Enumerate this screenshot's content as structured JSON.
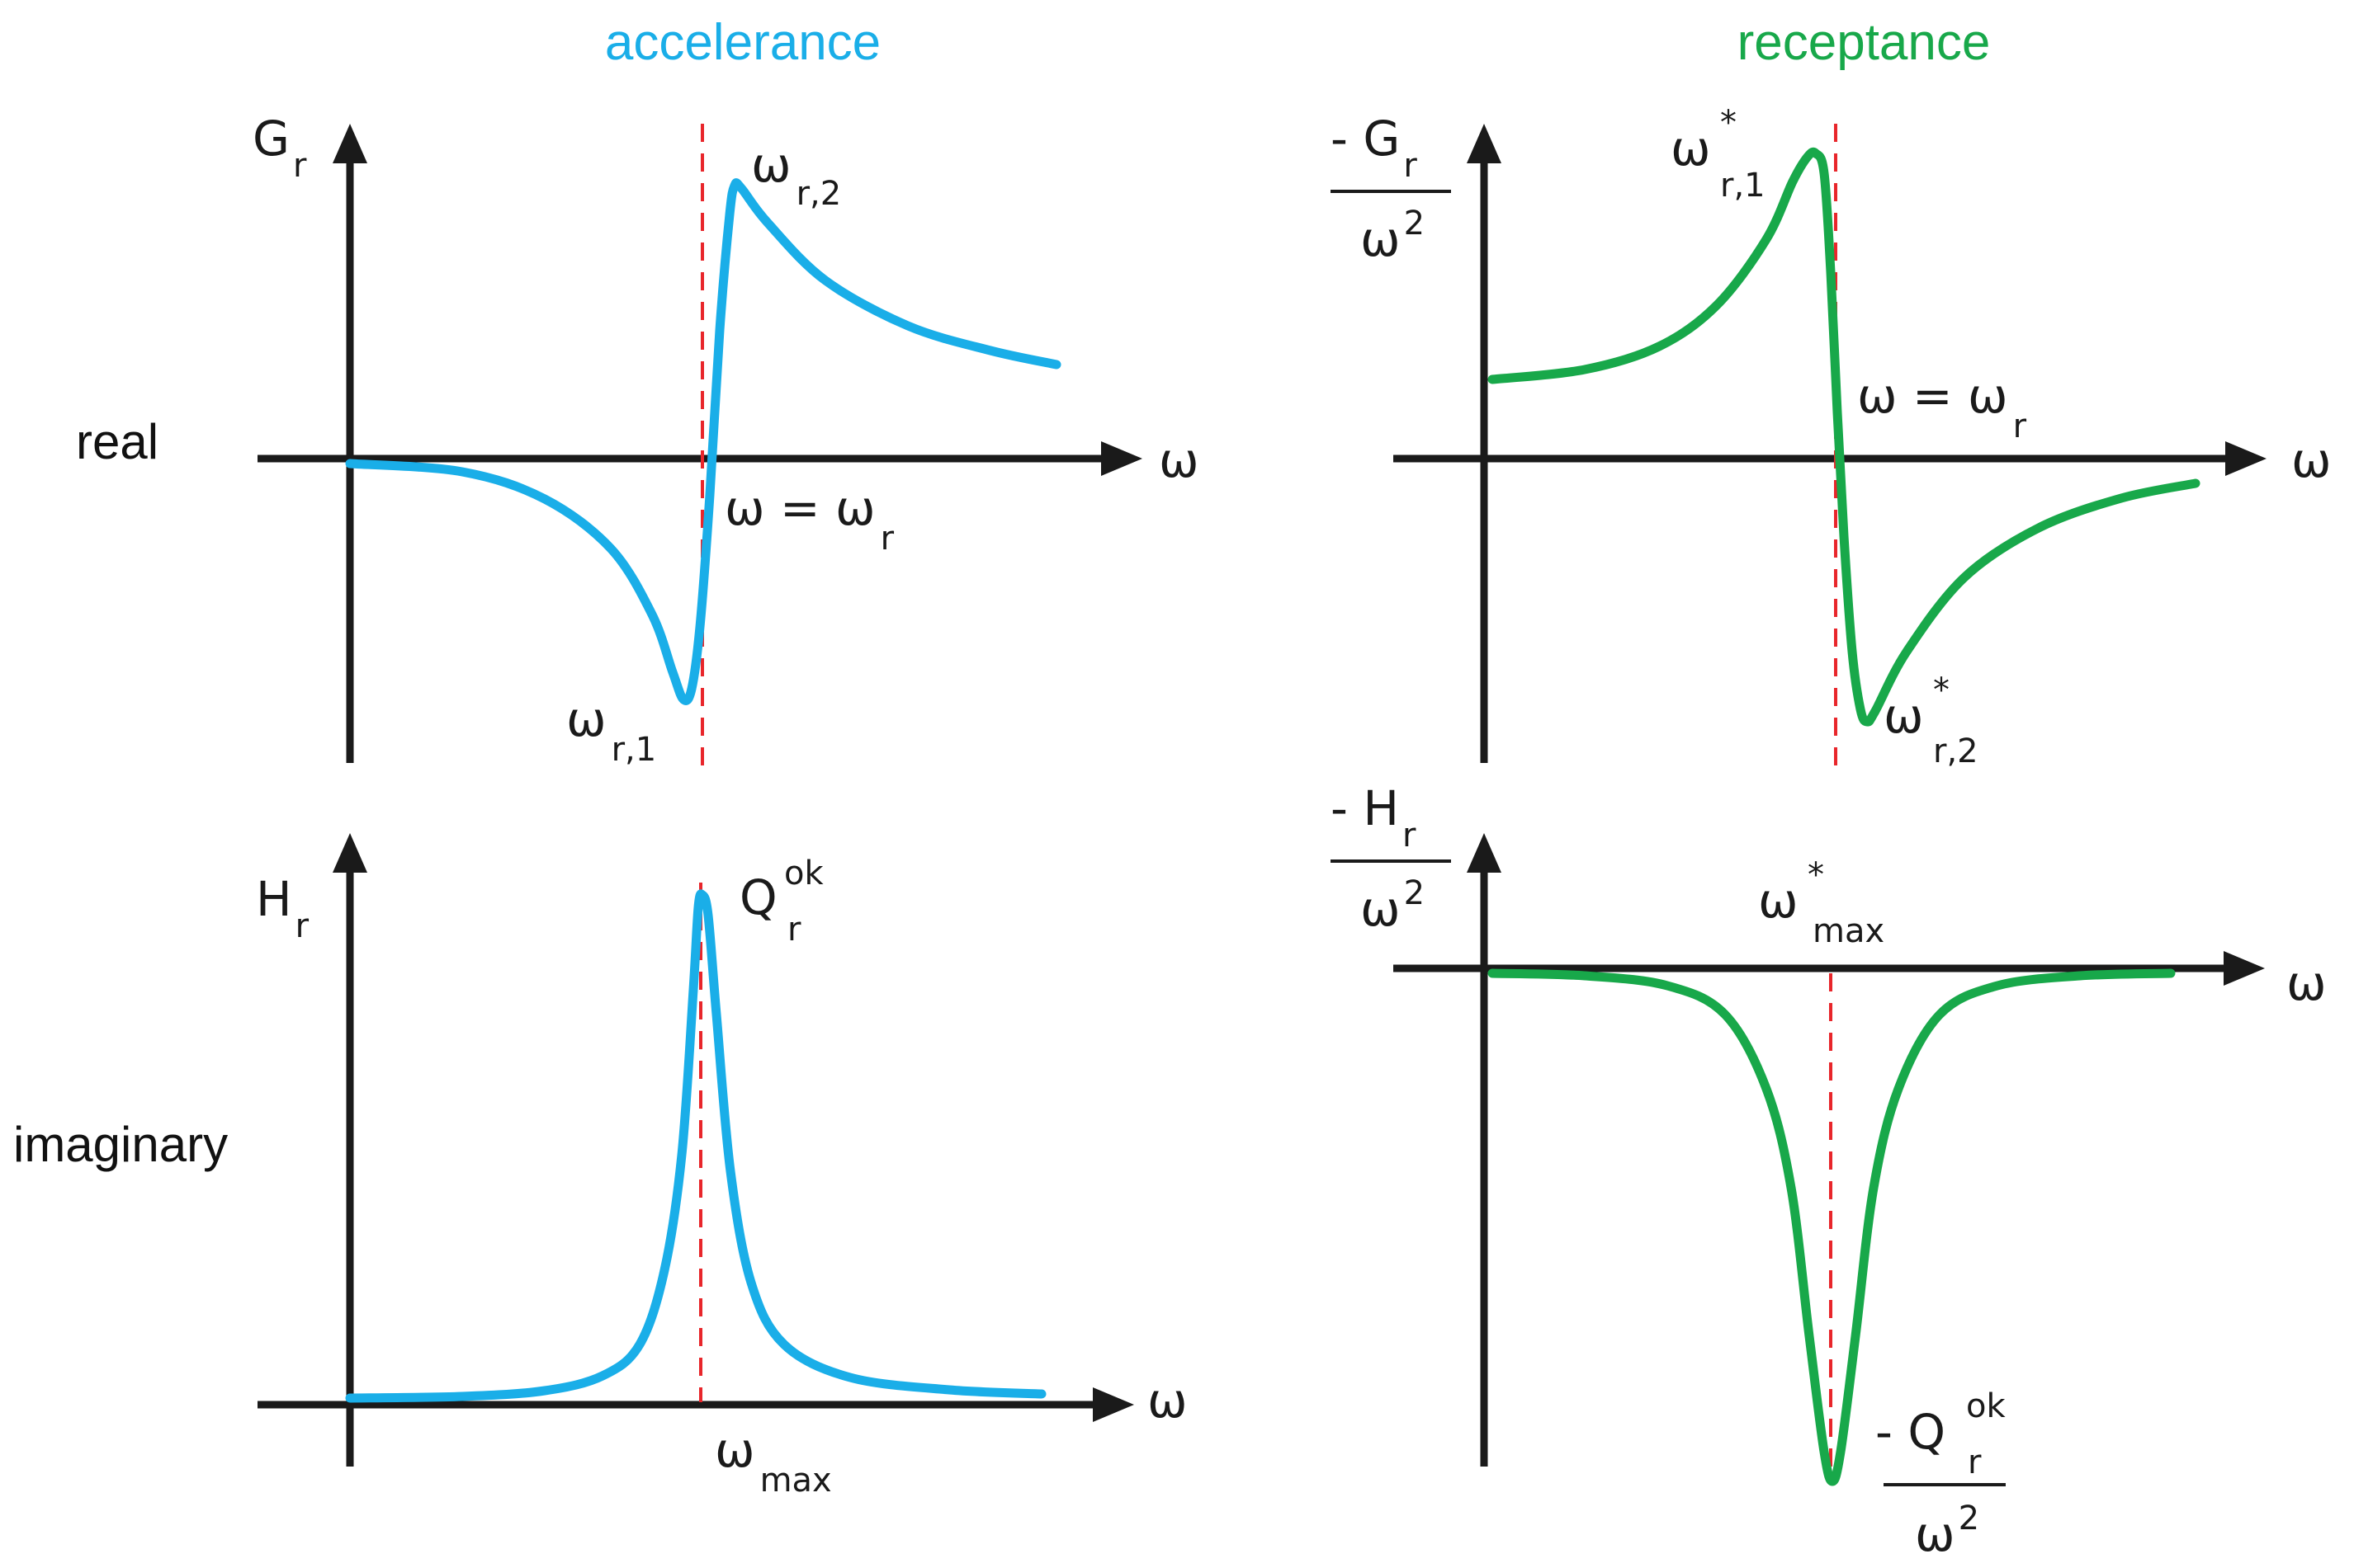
{
  "colors": {
    "accelerance": "#1aaee8",
    "receptance": "#18a84a",
    "axis": "#1a1a1a",
    "resonance_line": "#e8262b"
  },
  "titles": {
    "left": "accelerance",
    "right": "receptance"
  },
  "rows": {
    "top": "real",
    "bottom": "imaginary"
  },
  "axis_symbol": "ω",
  "panels": {
    "acc_real": {
      "y_label": "G",
      "y_sub": "r",
      "peak_pos": "ω",
      "peak_pos_sub": "r,2",
      "peak_neg": "ω",
      "peak_neg_sub": "r,1",
      "crossing": "ω = ω",
      "crossing_sub": "r"
    },
    "acc_imag": {
      "y_label": "H",
      "y_sub": "r",
      "peak": "Q",
      "peak_sup": "ok",
      "peak_sub": "r",
      "x_mark": "ω",
      "x_mark_sub": "max"
    },
    "rec_real": {
      "y_prefix": "- G",
      "y_sub": "r",
      "y_den": "ω",
      "y_den_sup": "2",
      "peak_pos": "ω",
      "peak_pos_sup": "*",
      "peak_pos_sub": "r,1",
      "peak_neg": "ω",
      "peak_neg_sup": "*",
      "peak_neg_sub": "r,2",
      "crossing": "ω = ω",
      "crossing_sub": "r"
    },
    "rec_imag": {
      "y_prefix": "- H",
      "y_sub": "r",
      "y_den": "ω",
      "y_den_sup": "2",
      "x_mark": "ω",
      "x_mark_sup": "*",
      "x_mark_sub": "max",
      "peak_prefix": "- Q",
      "peak_sup": "ok",
      "peak_sub": "r",
      "peak_den": "ω",
      "peak_den_sup": "2"
    }
  }
}
